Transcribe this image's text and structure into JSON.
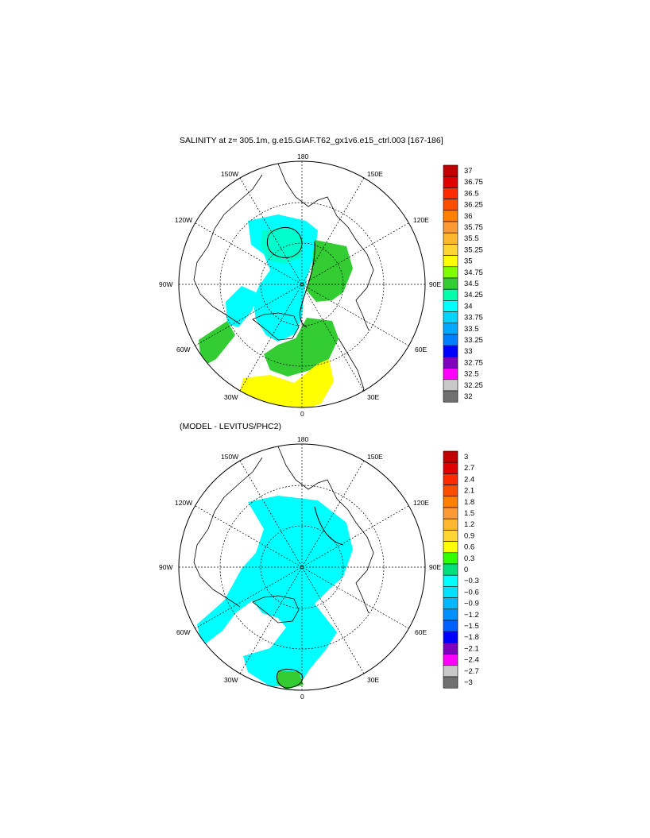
{
  "panels": [
    {
      "id": "salinity",
      "title": "SALINITY at z= 305.1m, g.e15.GIAF.T62_gx1v6.e15_ctrl.003 [167-186]",
      "lon_labels": {
        "top": "180",
        "bottom": "0",
        "left": "90W",
        "right": "90E",
        "upper_left": "150W",
        "upper_left2": "120W",
        "upper_right": "150E",
        "upper_right2": "120E",
        "lower_left": "60W",
        "lower_left2": "30W",
        "lower_right": "60E",
        "lower_right2": "30E"
      },
      "colorbar": {
        "labels": [
          "37",
          "36.75",
          "36.5",
          "36.25",
          "36",
          "35.75",
          "35.5",
          "35.25",
          "35",
          "34.75",
          "34.5",
          "34.25",
          "34",
          "33.75",
          "33.5",
          "33.25",
          "33",
          "32.75",
          "32.5",
          "32.25",
          "32"
        ],
        "colors": [
          "#c00000",
          "#e00000",
          "#ff2a00",
          "#ff4d00",
          "#ff7f00",
          "#ff9933",
          "#ffb732",
          "#ffd532",
          "#ffff00",
          "#80ff00",
          "#33cc33",
          "#00ffaa",
          "#00ffff",
          "#00d4ff",
          "#00a9ff",
          "#0080ff",
          "#0000ff",
          "#8000c0",
          "#ff00ff",
          "#c8c8c8",
          "#707070"
        ]
      }
    },
    {
      "id": "difference",
      "title": "(MODEL - LEVITUS/PHC2)",
      "lon_labels": {
        "top": "180",
        "bottom": "0",
        "left": "90W",
        "right": "90E",
        "upper_left": "150W",
        "upper_left2": "120W",
        "upper_right": "150E",
        "upper_right2": "120E",
        "lower_left": "60W",
        "lower_left2": "30W",
        "lower_right": "60E",
        "lower_right2": "30E"
      },
      "colorbar": {
        "labels": [
          "3",
          "2.7",
          "2.4",
          "2.1",
          "1.8",
          "1.5",
          "1.2",
          "0.9",
          "0.6",
          "0.3",
          "0",
          "−0.3",
          "−0.6",
          "−0.9",
          "−1.2",
          "−1.5",
          "−1.8",
          "−2.1",
          "−2.4",
          "−2.7",
          "−3"
        ],
        "colors": [
          "#c00000",
          "#e00000",
          "#ff2a00",
          "#ff4d00",
          "#ff7f00",
          "#ff9933",
          "#ffb732",
          "#ffd532",
          "#ffff00",
          "#33ff00",
          "#00e07a",
          "#00ffff",
          "#00e0ff",
          "#00b8ff",
          "#0090ff",
          "#0060ff",
          "#0000ff",
          "#8000c0",
          "#ff00ff",
          "#c8c8c8",
          "#707070"
        ]
      }
    }
  ]
}
